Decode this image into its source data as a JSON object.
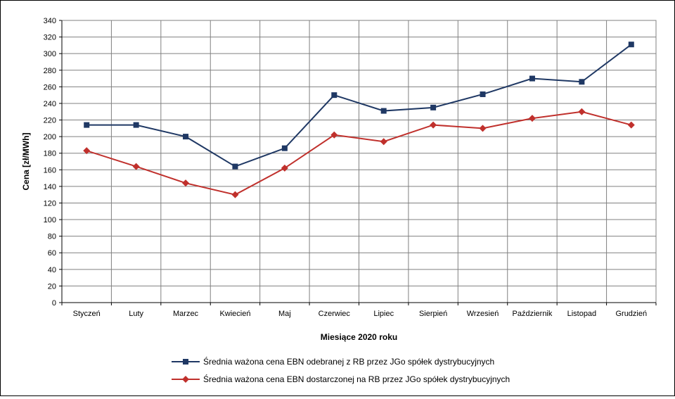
{
  "chart_data": {
    "type": "line",
    "title": "",
    "xlabel": "Miesiące 2020  roku",
    "ylabel": "Cena [zł/MWh]",
    "ylim": [
      0,
      340
    ],
    "ystep": 20,
    "grid": true,
    "legend_position": "bottom",
    "categories": [
      "Styczeń",
      "Luty",
      "Marzec",
      "Kwiecień",
      "Maj",
      "Czerwiec",
      "Lipiec",
      "Sierpień",
      "Wrzesień",
      "Październik",
      "Listopad",
      "Grudzień"
    ],
    "series": [
      {
        "name": "Średnia ważona cena EBN odebranej z RB przez JGo spółek dystrybucyjnych",
        "color": "#1f3864",
        "marker": "square",
        "values": [
          214,
          214,
          200,
          164,
          186,
          250,
          231,
          235,
          251,
          270,
          266,
          311
        ]
      },
      {
        "name": "Średnia ważona cena EBN dostarczonej na RB przez JGo spółek dystrybucyjnych",
        "color": "#c0302c",
        "marker": "diamond",
        "values": [
          183,
          164,
          144,
          130,
          162,
          202,
          194,
          214,
          210,
          222,
          230,
          214
        ]
      }
    ]
  }
}
